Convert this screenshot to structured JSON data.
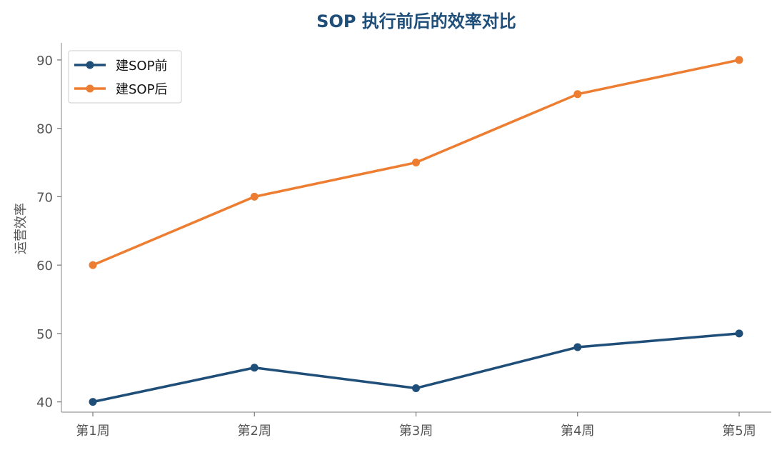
{
  "chart_data": {
    "type": "line",
    "title": "SOP 执行前后的效率对比",
    "xlabel": "",
    "ylabel": "运营效率",
    "categories": [
      "第1周",
      "第2周",
      "第3周",
      "第4周",
      "第5周"
    ],
    "series": [
      {
        "name": "建SOP前",
        "values": [
          40,
          45,
          42,
          48,
          50
        ],
        "color": "#1f4e79"
      },
      {
        "name": "建SOP后",
        "values": [
          60,
          70,
          75,
          85,
          90
        ],
        "color": "#ed7d31"
      }
    ],
    "ylim": [
      38.5,
      92.5
    ],
    "yticks": [
      40,
      50,
      60,
      70,
      80,
      90
    ],
    "grid": false,
    "legend": "top-left"
  }
}
